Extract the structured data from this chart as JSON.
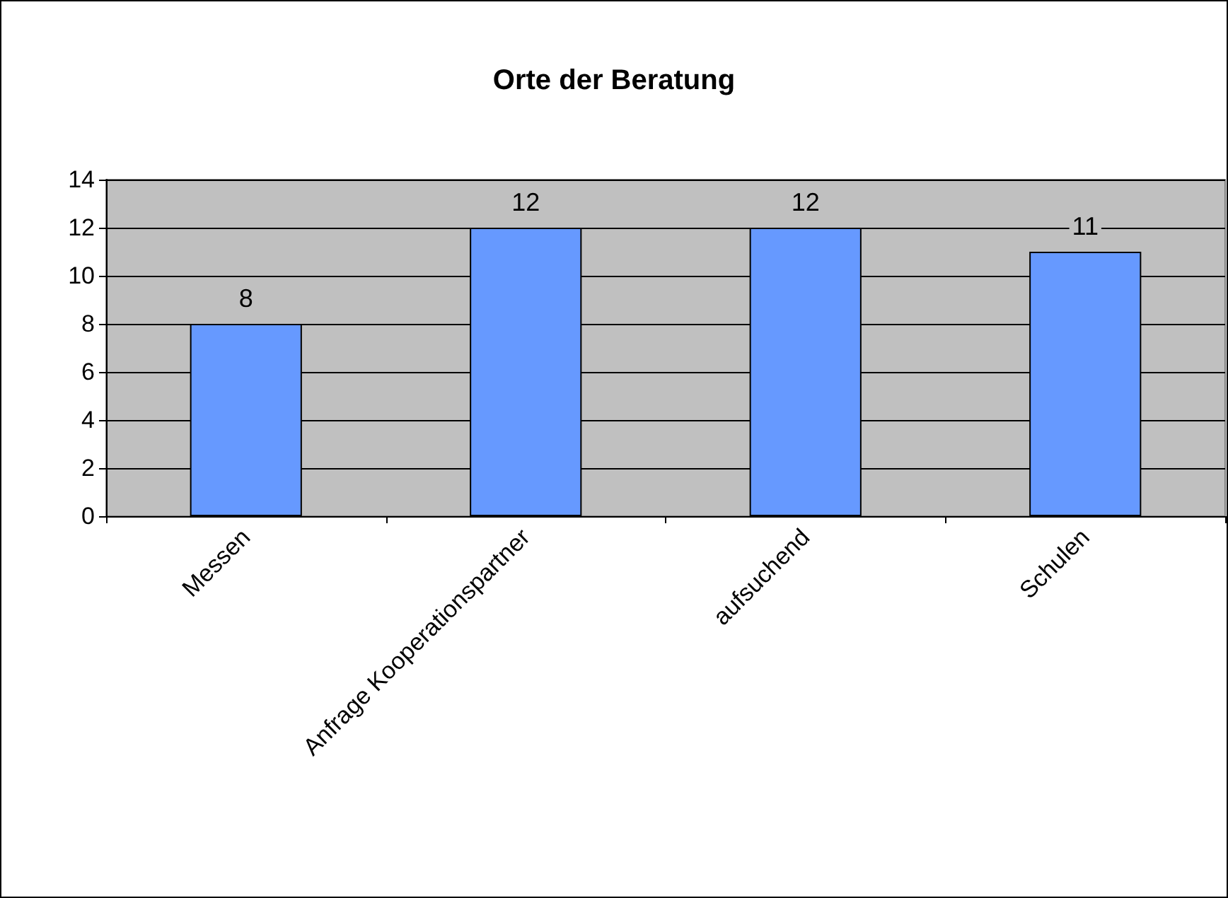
{
  "chart_data": {
    "type": "bar",
    "title": "Orte der Beratung",
    "categories": [
      "Messen",
      "Anfrage Kooperationspartner",
      "aufsuchend",
      "Schulen"
    ],
    "values": [
      8,
      12,
      12,
      11
    ],
    "color": "#6699ff",
    "ylim": [
      0,
      14
    ],
    "yticks": [
      0,
      2,
      4,
      6,
      8,
      10,
      12,
      14
    ],
    "grid": "y",
    "data_labels": true
  }
}
